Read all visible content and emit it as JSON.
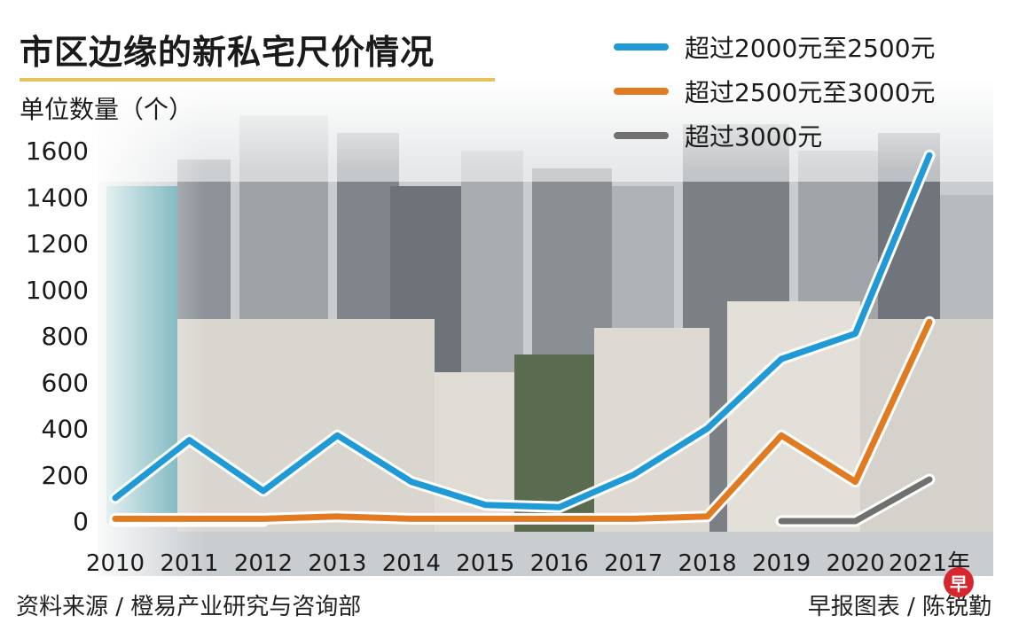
{
  "colors": {
    "series1": "#1f9ad6",
    "series2": "#e07b22",
    "series3": "#707070",
    "title_underline": "#e3c35a",
    "logo": "#d7262e"
  },
  "footer": {
    "source": "资料来源 / 橙易产业研究与咨询部",
    "credit": "早报图表 / 陈锐勤"
  },
  "logo_text": "早",
  "chart_data": {
    "type": "line",
    "title": "市区边缘的新私宅尺价情况",
    "ylabel": "单位数量（个）",
    "xlabel": "",
    "x": [
      "2010",
      "2011",
      "2012",
      "2013",
      "2014",
      "2015",
      "2016",
      "2017",
      "2018",
      "2019",
      "2020",
      "2021年"
    ],
    "ylim": [
      0,
      1600
    ],
    "yticks": [
      0,
      200,
      400,
      600,
      800,
      1000,
      1200,
      1400,
      1600
    ],
    "grid": false,
    "legend_position": "top-right",
    "series": [
      {
        "name": "超过2000元至2500元",
        "values": [
          100,
          350,
          130,
          370,
          170,
          70,
          60,
          200,
          400,
          700,
          810,
          1580
        ]
      },
      {
        "name": "超过2500元至3000元",
        "values": [
          10,
          10,
          10,
          20,
          10,
          10,
          10,
          10,
          20,
          370,
          170,
          860
        ]
      },
      {
        "name": "超过3000元",
        "values": [
          0,
          0,
          0,
          null,
          null,
          null,
          null,
          null,
          null,
          0,
          0,
          180
        ]
      }
    ]
  }
}
